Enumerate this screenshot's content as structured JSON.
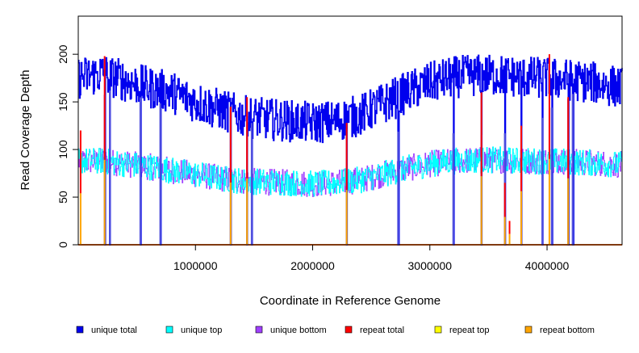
{
  "chart_data": {
    "type": "line",
    "title": "",
    "xlabel": "Coordinate in Reference Genome",
    "ylabel": "Read Coverage Depth",
    "xlim": [
      0,
      4640000
    ],
    "ylim": [
      0,
      240
    ],
    "x_ticks": [
      1000000,
      2000000,
      3000000,
      4000000
    ],
    "x_tick_labels": [
      "1000000",
      "2000000",
      "3000000",
      "4000000"
    ],
    "y_ticks": [
      0,
      50,
      100,
      150,
      200
    ],
    "y_tick_labels": [
      "0",
      "50",
      "100",
      "150",
      "200"
    ],
    "grid": false,
    "legend_position": "bottom",
    "colors": {
      "unique_total": "#0000ee",
      "unique_top": "#00ffff",
      "unique_bottom": "#a040ff",
      "repeat_total": "#ff0000",
      "repeat_top": "#ffff00",
      "repeat_bottom": "#ffa500"
    },
    "series": [
      {
        "name": "unique total",
        "color": "#0000ee",
        "x": [
          0,
          200000,
          400000,
          600000,
          800000,
          1000000,
          1200000,
          1400000,
          1600000,
          1800000,
          2000000,
          2200000,
          2400000,
          2600000,
          2800000,
          3000000,
          3200000,
          3400000,
          3600000,
          3800000,
          4000000,
          4200000,
          4400000,
          4640000
        ],
        "values": [
          175,
          180,
          172,
          165,
          160,
          150,
          142,
          135,
          132,
          130,
          128,
          130,
          136,
          148,
          160,
          170,
          176,
          178,
          178,
          176,
          175,
          173,
          170,
          165
        ]
      },
      {
        "name": "unique top",
        "color": "#00ffff",
        "x": [
          0,
          200000,
          400000,
          600000,
          800000,
          1000000,
          1200000,
          1400000,
          1600000,
          1800000,
          2000000,
          2200000,
          2400000,
          2600000,
          2800000,
          3000000,
          3200000,
          3400000,
          3600000,
          3800000,
          4000000,
          4200000,
          4400000,
          4640000
        ],
        "values": [
          88,
          88,
          85,
          82,
          78,
          74,
          70,
          67,
          66,
          65,
          64,
          65,
          68,
          74,
          80,
          85,
          88,
          89,
          89,
          88,
          88,
          87,
          86,
          84
        ]
      },
      {
        "name": "unique bottom",
        "color": "#a040ff",
        "x": [
          0,
          200000,
          400000,
          600000,
          800000,
          1000000,
          1200000,
          1400000,
          1600000,
          1800000,
          2000000,
          2200000,
          2400000,
          2600000,
          2800000,
          3000000,
          3200000,
          3400000,
          3600000,
          3800000,
          4000000,
          4200000,
          4400000,
          4640000
        ],
        "values": [
          87,
          88,
          85,
          82,
          78,
          74,
          70,
          67,
          66,
          65,
          64,
          65,
          68,
          74,
          80,
          85,
          88,
          89,
          89,
          88,
          88,
          87,
          86,
          84
        ]
      },
      {
        "name": "repeat total",
        "color": "#ff0000",
        "x": [
          0,
          4640000
        ],
        "values": [
          0,
          0
        ]
      },
      {
        "name": "repeat top",
        "color": "#ffff00",
        "x": [
          0,
          4640000
        ],
        "values": [
          0,
          0
        ]
      },
      {
        "name": "repeat bottom",
        "color": "#ffa500",
        "x": [
          0,
          4640000
        ],
        "values": [
          0,
          0
        ]
      }
    ],
    "repeat_spikes": {
      "x": [
        20000,
        225000,
        1300000,
        1440000,
        2290000,
        3440000,
        3640000,
        3680000,
        3780000,
        4020000,
        4180000
      ],
      "values": [
        120,
        198,
        145,
        155,
        128,
        160,
        65,
        25,
        125,
        200,
        155
      ]
    },
    "coverage_dips": {
      "x": [
        225000,
        270000,
        530000,
        700000,
        1300000,
        1440000,
        1480000,
        2290000,
        2730000,
        3200000,
        3440000,
        3640000,
        3780000,
        3960000,
        4040000,
        4180000,
        4220000
      ],
      "values": [
        0,
        0,
        0,
        0,
        0,
        0,
        0,
        0,
        0,
        0,
        0,
        0,
        0,
        0,
        0,
        0,
        0
      ]
    }
  },
  "legend": [
    {
      "label": "unique total",
      "color": "#0000ee"
    },
    {
      "label": "unique top",
      "color": "#00ffff"
    },
    {
      "label": "unique bottom",
      "color": "#a040ff"
    },
    {
      "label": "repeat total",
      "color": "#ff0000"
    },
    {
      "label": "repeat top",
      "color": "#ffff00"
    },
    {
      "label": "repeat bottom",
      "color": "#ffa500"
    }
  ]
}
